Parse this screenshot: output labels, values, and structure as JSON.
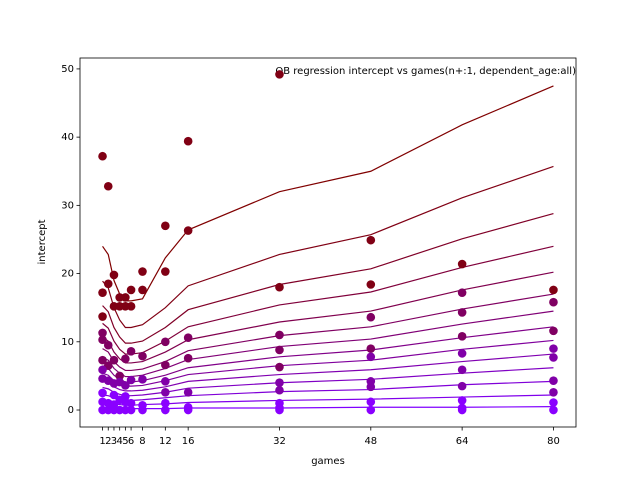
{
  "chart_data": {
    "type": "line",
    "title": "QB regression intercept vs games(n+:1, dependent_age:all)",
    "xlabel": "games",
    "ylabel": "intercept",
    "x": [
      1,
      2,
      3,
      4,
      5,
      6,
      8,
      12,
      16,
      32,
      48,
      64,
      80
    ],
    "xlim": [
      -2.95,
      83.95
    ],
    "xticks": [
      1,
      2,
      3,
      4,
      5,
      6,
      8,
      12,
      16,
      32,
      48,
      64,
      80
    ],
    "ylim": [
      -2.49,
      51.6
    ],
    "yticks": [
      0,
      10,
      20,
      30,
      40,
      50
    ],
    "series": [
      {
        "color": "#800000",
        "values": [
          24,
          22.8,
          19,
          17,
          16,
          16,
          16.3,
          22.3,
          26.4,
          32,
          35,
          41.8,
          47.5
        ]
      },
      {
        "color": "#800014",
        "values": [
          18.9,
          17.9,
          15.0,
          13.2,
          12.1,
          12.1,
          12.5,
          15.0,
          18.2,
          22.8,
          25.7,
          31.1,
          35.7
        ]
      },
      {
        "color": "#800027",
        "values": [
          15.3,
          14.4,
          12.1,
          10.7,
          9.8,
          9.8,
          10.1,
          12.1,
          14.7,
          18.4,
          20.7,
          25.1,
          28.8
        ]
      },
      {
        "color": "#80003b",
        "values": [
          12.7,
          12.0,
          10.1,
          8.9,
          8.2,
          8.2,
          8.4,
          10.1,
          12.2,
          15.4,
          17.3,
          20.9,
          24.0
        ]
      },
      {
        "color": "#80004e",
        "values": [
          10.7,
          10.1,
          8.5,
          7.5,
          6.9,
          6.9,
          7.1,
          8.5,
          10.3,
          12.9,
          14.5,
          17.6,
          20.2
        ]
      },
      {
        "color": "#800062",
        "values": [
          9.0,
          8.5,
          7.1,
          6.3,
          5.8,
          5.8,
          6.0,
          7.1,
          8.7,
          10.9,
          12.2,
          14.8,
          17.0
        ]
      },
      {
        "color": "#800076",
        "values": [
          7.7,
          7.3,
          6.1,
          5.4,
          4.9,
          4.9,
          5.1,
          6.1,
          7.4,
          9.3,
          10.4,
          12.6,
          14.5
        ]
      },
      {
        "color": "#800089",
        "values": [
          6.5,
          6.1,
          5.1,
          4.5,
          4.1,
          4.1,
          4.3,
          5.1,
          6.2,
          7.8,
          8.8,
          10.6,
          12.2
        ]
      },
      {
        "color": "#80009d",
        "values": [
          5.4,
          5.1,
          4.3,
          3.8,
          3.5,
          3.5,
          3.6,
          4.3,
          5.2,
          6.5,
          7.3,
          8.9,
          10.2
        ]
      },
      {
        "color": "#8000b1",
        "values": [
          4.3,
          4.1,
          3.4,
          3.0,
          2.8,
          2.8,
          2.9,
          3.4,
          4.2,
          5.2,
          5.9,
          7.1,
          8.2
        ]
      },
      {
        "color": "#8000c4",
        "values": [
          3.3,
          3.1,
          2.6,
          2.3,
          2.1,
          2.1,
          2.2,
          2.6,
          3.2,
          4.0,
          4.5,
          5.4,
          6.2
        ]
      },
      {
        "color": "#8000d8",
        "values": [
          2.2,
          2.1,
          1.8,
          1.6,
          1.4,
          1.4,
          1.5,
          1.8,
          2.1,
          2.7,
          3.0,
          3.7,
          4.2
        ]
      },
      {
        "color": "#8000eb",
        "values": [
          1.2,
          1.1,
          0.9,
          0.8,
          0.7,
          0.7,
          0.8,
          0.9,
          1.1,
          1.4,
          1.6,
          1.9,
          2.2
        ]
      },
      {
        "color": "#8000ff",
        "values": [
          0.3,
          0.3,
          0.2,
          0.2,
          0.2,
          0.2,
          0.2,
          0.2,
          0.3,
          0.3,
          0.4,
          0.4,
          0.5
        ]
      }
    ],
    "scatter": [
      {
        "color": "#800014",
        "x": [
          1,
          2,
          1,
          2,
          3,
          3,
          4,
          5,
          4,
          5,
          6,
          6,
          8,
          8,
          12,
          12,
          16,
          16,
          32,
          32,
          48,
          48,
          64,
          80,
          1
        ],
        "y": [
          37.2,
          32.8,
          17.2,
          18.5,
          19.8,
          15.2,
          16.5,
          16.5,
          15.2,
          15.2,
          17.6,
          15.2,
          20.3,
          17.6,
          27,
          20.3,
          39.4,
          26.3,
          49.2,
          18,
          24.9,
          18.4,
          21.4,
          17.6,
          13.7
        ]
      },
      {
        "color": "#800062",
        "x": [
          1,
          1,
          2,
          3,
          4,
          5,
          6,
          8,
          12,
          12,
          16,
          16,
          32,
          32,
          32,
          48,
          48,
          64,
          64,
          64,
          80,
          80,
          1,
          2
        ],
        "y": [
          11.3,
          10.3,
          9.5,
          7.3,
          5,
          7.5,
          8.6,
          7.9,
          10,
          6.6,
          10.6,
          7.6,
          11,
          8.8,
          6.3,
          13.6,
          9,
          17.2,
          14.3,
          10.8,
          15.8,
          11.6,
          7.3,
          6.5
        ]
      },
      {
        "color": "#8000a8",
        "x": [
          1,
          1,
          2,
          3,
          4,
          5,
          6,
          8,
          12,
          12,
          16,
          32,
          32,
          48,
          48,
          48,
          64,
          64,
          64,
          80,
          80,
          80,
          80
        ],
        "y": [
          5.9,
          4.6,
          4.3,
          3.9,
          4.1,
          3.6,
          4.4,
          4.5,
          4.2,
          2.6,
          2.6,
          4,
          2.9,
          4.2,
          3.4,
          7.8,
          8.3,
          5.9,
          3.5,
          9.0,
          7.7,
          4.3,
          2.6
        ]
      },
      {
        "color": "#8a00ff",
        "x": [
          1,
          2,
          3,
          4,
          5,
          6,
          8,
          12,
          16,
          32,
          48,
          64,
          80,
          1,
          2,
          3,
          4,
          5,
          6,
          8,
          12,
          16,
          32,
          48,
          64,
          80,
          1,
          3,
          5,
          32,
          64
        ],
        "y": [
          0,
          0,
          0,
          0,
          0,
          0,
          0,
          0,
          0,
          0,
          0,
          0,
          0,
          1.2,
          1.0,
          0.8,
          1.5,
          1.2,
          1.0,
          0.7,
          1.0,
          0.4,
          1.0,
          1.2,
          1.4,
          1.1,
          2.5,
          2.2,
          2.0,
          0.3,
          0.3
        ]
      }
    ]
  }
}
